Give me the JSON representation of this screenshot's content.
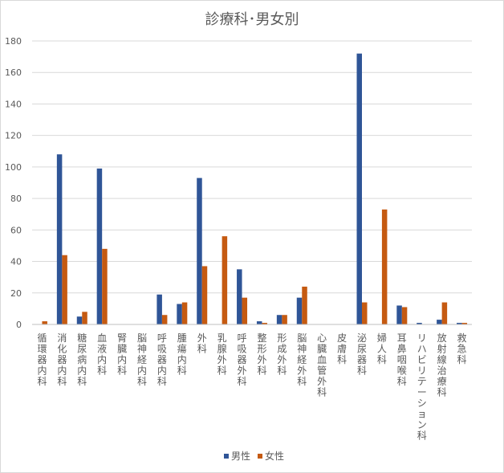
{
  "chart_data": {
    "type": "bar",
    "title": "診療科･男女別",
    "xlabel": "",
    "ylabel": "",
    "ylim": [
      0,
      180
    ],
    "yticks": [
      0,
      20,
      40,
      60,
      80,
      100,
      120,
      140,
      160,
      180
    ],
    "grid": true,
    "legend": "bottom",
    "categories": [
      "循環器内科",
      "消化器内科",
      "糖尿病内科",
      "血液内科",
      "腎臓内科",
      "脳神経内科",
      "呼吸器内科",
      "腫瘍内科",
      "外科",
      "乳腺外科",
      "呼吸器外科",
      "整形外科",
      "形成外科",
      "脳神経外科",
      "心臓血管外科",
      "皮膚科",
      "泌尿器科",
      "婦人科",
      "耳鼻咽喉科",
      "リハビリテーション科",
      "放射線治療科",
      "救急科"
    ],
    "series": [
      {
        "name": "男性",
        "color": "#2f5597",
        "values": [
          0,
          108,
          5,
          99,
          0,
          0,
          19,
          13,
          93,
          0,
          35,
          2,
          6,
          17,
          0,
          0,
          172,
          0,
          12,
          1,
          3,
          1
        ]
      },
      {
        "name": "女性",
        "color": "#c55a11",
        "values": [
          2,
          44,
          8,
          48,
          0,
          0,
          6,
          14,
          37,
          56,
          17,
          1,
          6,
          24,
          0,
          0,
          14,
          73,
          11,
          0,
          14,
          1
        ]
      }
    ]
  }
}
